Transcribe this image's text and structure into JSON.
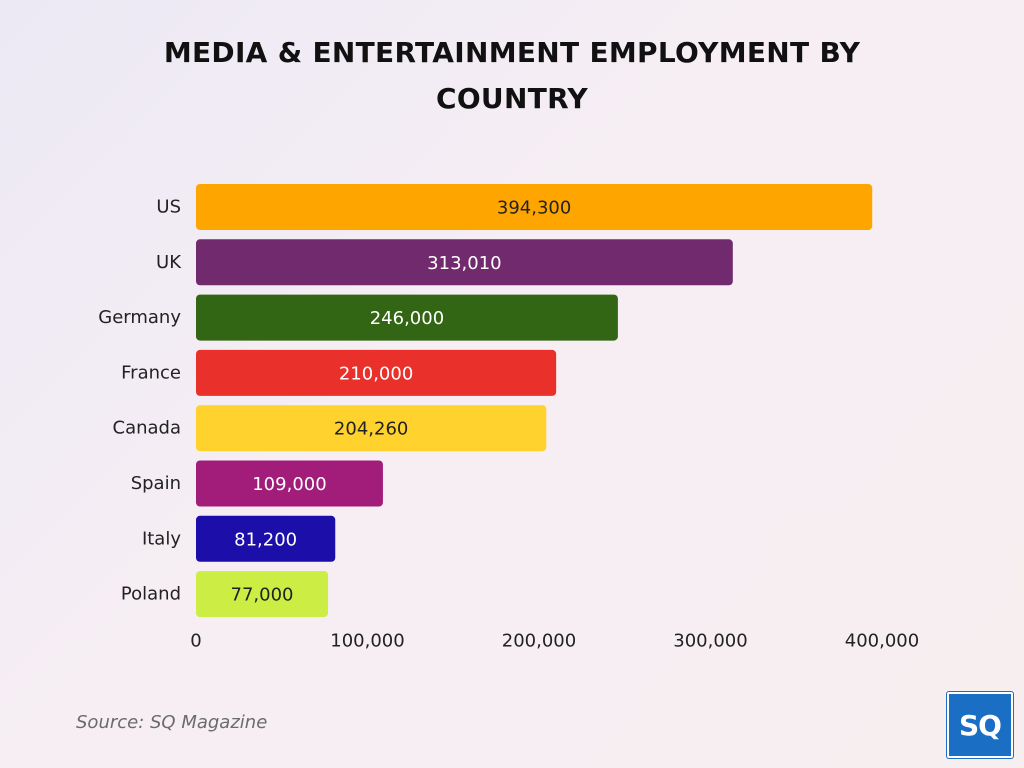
{
  "chart_data": {
    "type": "bar",
    "orientation": "horizontal",
    "title": "MEDIA & ENTERTAINMENT EMPLOYMENT BY COUNTRY",
    "categories": [
      "US",
      "UK",
      "Germany",
      "France",
      "Canada",
      "Spain",
      "Italy",
      "Poland"
    ],
    "values": [
      394300,
      313010,
      246000,
      210000,
      204260,
      109000,
      81200,
      77000
    ],
    "value_labels": [
      "394,300",
      "313,010",
      "246,000",
      "210,000",
      "204,260",
      "109,000",
      "81,200",
      "77,000"
    ],
    "bar_colors": [
      "#FFA500",
      "#722A6E",
      "#336614",
      "#E9302A",
      "#FFD22E",
      "#A21C7A",
      "#1C0EA8",
      "#CCEE44"
    ],
    "label_colors": [
      "#222222",
      "#ffffff",
      "#ffffff",
      "#ffffff",
      "#222222",
      "#ffffff",
      "#ffffff",
      "#222222"
    ],
    "xlim": [
      0,
      400000
    ],
    "xticks": [
      0,
      100000,
      200000,
      300000,
      400000
    ],
    "xtick_labels": [
      "0",
      "100,000",
      "200,000",
      "300,000",
      "400,000"
    ],
    "xlabel": "",
    "ylabel": "",
    "grid": false,
    "legend": "none"
  },
  "footer": {
    "source": "Source: SQ Magazine",
    "logo_text": "SQ",
    "logo_color": "#1A6FC4"
  }
}
